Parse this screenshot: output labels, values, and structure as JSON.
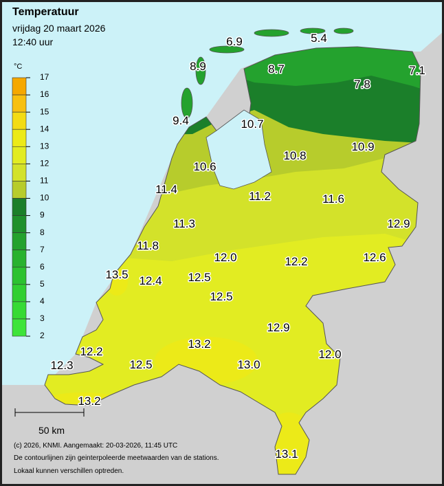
{
  "header": {
    "title": "Temperatuur",
    "date": "vrijdag 20 maart 2026",
    "time": "12:40 uur"
  },
  "legend": {
    "unit": "°C",
    "ticks": [
      "17",
      "16",
      "15",
      "14",
      "13",
      "12",
      "11",
      "10",
      "9",
      "8",
      "7",
      "6",
      "5",
      "4",
      "3",
      "2"
    ],
    "colors": [
      "#f5a800",
      "#f7c010",
      "#f3dc14",
      "#ecea18",
      "#e2ec22",
      "#d3e22a",
      "#b7cc2c",
      "#1b7f2a",
      "#1f902c",
      "#24a22e",
      "#28b22f",
      "#2cc230",
      "#31cf32",
      "#36da34",
      "#3ee43a"
    ]
  },
  "stations": [
    "6.9",
    "5.4",
    "8.9",
    "8.7",
    "7.1",
    "7.8",
    "9.4",
    "10.7",
    "10.8",
    "10.9",
    "10.6",
    "11.4",
    "11.2",
    "11.6",
    "11.3",
    "12.9",
    "11.8",
    "12.0",
    "12.2",
    "12.6",
    "13.5",
    "12.4",
    "12.5",
    "12.5",
    "12.9",
    "13.2",
    "12.2",
    "12.0",
    "13.0",
    "12.3",
    "12.5",
    "13.2",
    "13.1"
  ],
  "scale": "50 km",
  "footer": [
    "(c) 2026, KNMI. Aangemaakt: 20-03-2026, 11:45 UTC",
    "De contourlijnen zijn geinterpoleerde meetwaarden van de stations.",
    "Lokaal kunnen verschillen optreden."
  ]
}
